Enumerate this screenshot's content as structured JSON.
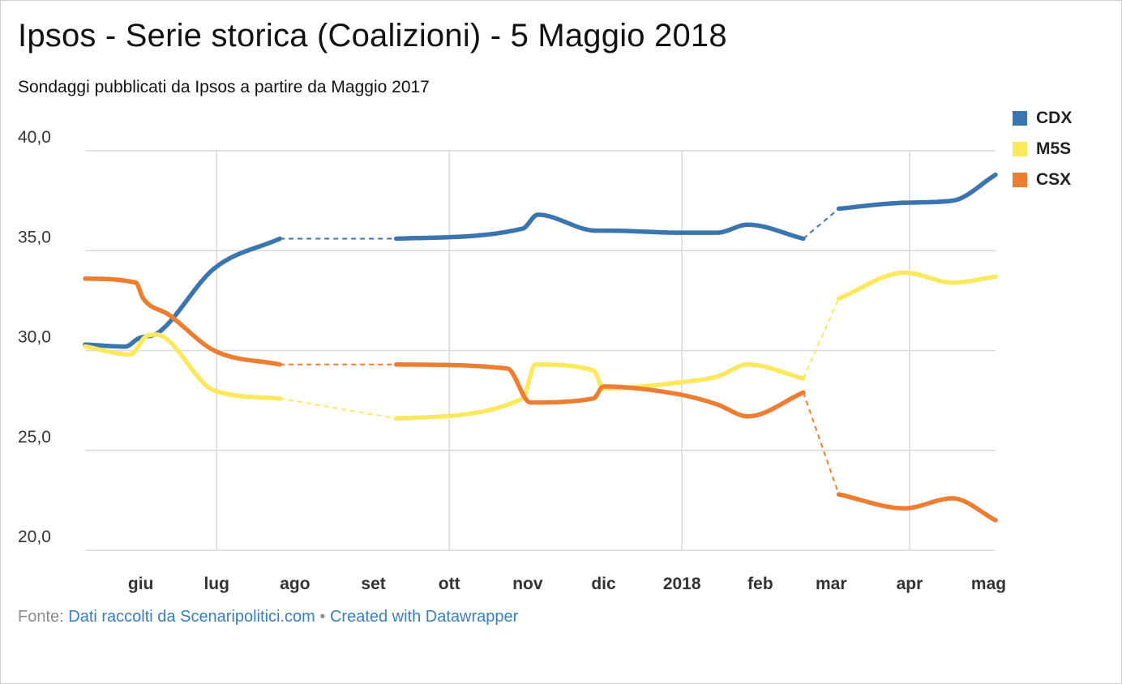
{
  "title": "Ipsos - Serie storica (Coalizioni) - 5 Maggio 2018",
  "subtitle": "Sondaggi pubblicati da Ipsos a partire da Maggio 2017",
  "legend": [
    {
      "label": "CDX",
      "color": "#3a75b0"
    },
    {
      "label": "M5S",
      "color": "#fbe85d"
    },
    {
      "label": "CSX",
      "color": "#ed7d31"
    }
  ],
  "footer": {
    "prefix": "Fonte:",
    "source": "Dati raccolti da Scenaripolitici.com",
    "separator": "•",
    "credit": "Created with Datawrapper"
  },
  "chart_data": {
    "type": "line",
    "title": "Ipsos - Serie storica (Coalizioni) - 5 Maggio 2018",
    "subtitle": "Sondaggi pubblicati da Ipsos a partire da Maggio 2017",
    "xlabel": "",
    "ylabel": "",
    "x_ticks": [
      "giu",
      "lug",
      "ago",
      "set",
      "ott",
      "nov",
      "dic",
      "2018",
      "feb",
      "mar",
      "apr",
      "mag"
    ],
    "y_ticks": [
      "40,0",
      "35,0",
      "30,0",
      "25,0",
      "20,0"
    ],
    "ylim": [
      20,
      40
    ],
    "grid": true,
    "legend_position": "top-right",
    "gaps": [
      [
        "2017-07-26",
        "2017-09-10"
      ],
      [
        "2018-02-18",
        "2018-03-04"
      ]
    ],
    "series": [
      {
        "name": "CDX",
        "color": "#3a75b0",
        "points": [
          [
            "2017-05-10",
            30.3
          ],
          [
            "2017-05-26",
            30.2
          ],
          [
            "2017-05-31",
            30.6
          ],
          [
            "2017-06-08",
            30.9
          ],
          [
            "2017-06-30",
            34.1
          ],
          [
            "2017-07-26",
            35.6
          ],
          [
            "2017-09-10",
            35.6
          ],
          [
            "2017-10-30",
            36.1
          ],
          [
            "2017-11-05",
            36.8
          ],
          [
            "2017-11-28",
            36.0
          ],
          [
            "2017-12-03",
            36.0
          ],
          [
            "2017-12-31",
            35.9
          ],
          [
            "2018-01-15",
            35.9
          ],
          [
            "2018-01-27",
            36.3
          ],
          [
            "2018-02-18",
            35.6
          ],
          [
            "2018-03-04",
            37.1
          ],
          [
            "2018-03-30",
            37.4
          ],
          [
            "2018-04-18",
            37.5
          ],
          [
            "2018-05-05",
            38.8
          ]
        ]
      },
      {
        "name": "M5S",
        "color": "#fbe85d",
        "points": [
          [
            "2017-05-10",
            30.2
          ],
          [
            "2017-05-28",
            29.8
          ],
          [
            "2017-06-03",
            30.7
          ],
          [
            "2017-06-07",
            30.8
          ],
          [
            "2017-06-30",
            28.0
          ],
          [
            "2017-07-26",
            27.6
          ],
          [
            "2017-09-10",
            26.6
          ],
          [
            "2017-10-30",
            27.6
          ],
          [
            "2017-11-04",
            29.3
          ],
          [
            "2017-11-27",
            29.0
          ],
          [
            "2017-12-01",
            28.1
          ],
          [
            "2017-12-31",
            28.4
          ],
          [
            "2018-01-15",
            28.7
          ],
          [
            "2018-01-27",
            29.3
          ],
          [
            "2018-02-18",
            28.6
          ],
          [
            "2018-03-04",
            32.6
          ],
          [
            "2018-03-30",
            33.9
          ],
          [
            "2018-04-18",
            33.4
          ],
          [
            "2018-05-05",
            33.7
          ]
        ]
      },
      {
        "name": "CSX",
        "color": "#ed7d31",
        "points": [
          [
            "2017-05-10",
            33.6
          ],
          [
            "2017-05-30",
            33.4
          ],
          [
            "2017-06-02",
            32.6
          ],
          [
            "2017-06-12",
            31.8
          ],
          [
            "2017-06-30",
            30.0
          ],
          [
            "2017-07-26",
            29.3
          ],
          [
            "2017-09-10",
            29.3
          ],
          [
            "2017-10-24",
            29.1
          ],
          [
            "2017-11-02",
            27.4
          ],
          [
            "2017-11-27",
            27.6
          ],
          [
            "2017-12-01",
            28.2
          ],
          [
            "2017-12-31",
            27.8
          ],
          [
            "2018-01-15",
            27.3
          ],
          [
            "2018-01-27",
            26.7
          ],
          [
            "2018-02-18",
            27.9
          ],
          [
            "2018-03-04",
            22.8
          ],
          [
            "2018-03-30",
            22.1
          ],
          [
            "2018-04-18",
            22.6
          ],
          [
            "2018-05-05",
            21.5
          ]
        ]
      }
    ]
  }
}
